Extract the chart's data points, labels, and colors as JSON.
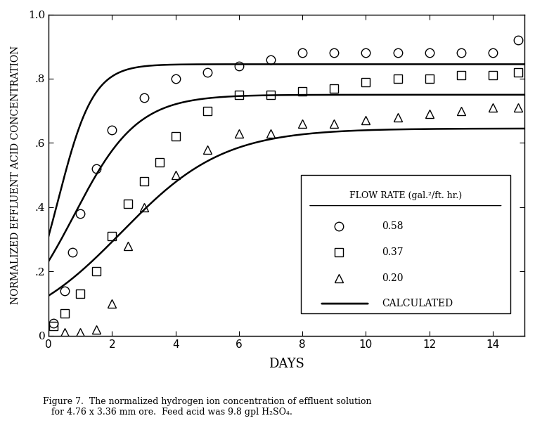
{
  "title": "",
  "xlabel": "DAYS",
  "ylabel": "NORMALIZED EFFLUENT ACID CONCENTRATION",
  "xlim": [
    0,
    15
  ],
  "ylim": [
    0,
    1.0
  ],
  "xticks": [
    0,
    2,
    4,
    6,
    8,
    10,
    12,
    14
  ],
  "ytick_vals": [
    0,
    0.2,
    0.4,
    0.6,
    0.8,
    1.0
  ],
  "ytick_labels": [
    "0",
    ".2",
    ".4",
    ".6",
    ".8",
    "1.0"
  ],
  "background_color": "#ffffff",
  "data_058_x": [
    0.15,
    0.5,
    0.75,
    1.0,
    1.5,
    2.0,
    3.0,
    4.0,
    5.0,
    6.0,
    7.0,
    8.0,
    9.0,
    10.0,
    11.0,
    12.0,
    13.0,
    14.0,
    14.8
  ],
  "data_058_y": [
    0.04,
    0.14,
    0.26,
    0.38,
    0.52,
    0.64,
    0.74,
    0.8,
    0.82,
    0.84,
    0.86,
    0.88,
    0.88,
    0.88,
    0.88,
    0.88,
    0.88,
    0.88,
    0.92
  ],
  "data_037_x": [
    0.15,
    0.5,
    1.0,
    1.5,
    2.0,
    2.5,
    3.0,
    3.5,
    4.0,
    5.0,
    6.0,
    7.0,
    8.0,
    9.0,
    10.0,
    11.0,
    12.0,
    13.0,
    14.0,
    14.8
  ],
  "data_037_y": [
    0.03,
    0.07,
    0.13,
    0.2,
    0.31,
    0.41,
    0.48,
    0.54,
    0.62,
    0.7,
    0.75,
    0.75,
    0.76,
    0.77,
    0.79,
    0.8,
    0.8,
    0.81,
    0.81,
    0.82
  ],
  "data_020_x": [
    0.5,
    1.0,
    1.5,
    2.0,
    2.5,
    3.0,
    4.0,
    5.0,
    6.0,
    7.0,
    8.0,
    9.0,
    10.0,
    11.0,
    12.0,
    13.0,
    14.0,
    14.8
  ],
  "data_020_y": [
    0.01,
    0.01,
    0.02,
    0.1,
    0.28,
    0.4,
    0.5,
    0.58,
    0.63,
    0.63,
    0.66,
    0.66,
    0.67,
    0.68,
    0.69,
    0.7,
    0.71,
    0.71
  ],
  "calc_058_asymptote": 0.845,
  "calc_037_asymptote": 0.75,
  "calc_020_asymptote": 0.645,
  "calc_058_k": 1.8,
  "calc_037_k": 1.0,
  "calc_020_k": 0.62,
  "calc_058_t0": 0.3,
  "calc_037_t0": 0.8,
  "calc_020_t0": 2.3,
  "legend_title": "FLOW RATE (gal.²/ft. hr.)",
  "legend_entries": [
    "0.58",
    "0.37",
    "0.20",
    "CALCULATED"
  ],
  "caption_line1": "Figure 7.  The normalized hydrogen ion concentration of effluent solution",
  "caption_line2": "   for 4.76 x 3.36 mm ore.  Feed acid was 9.8 gpl H₂SO₄.",
  "font_color": "#000000",
  "line_color": "#000000",
  "marker_color": "#000000"
}
